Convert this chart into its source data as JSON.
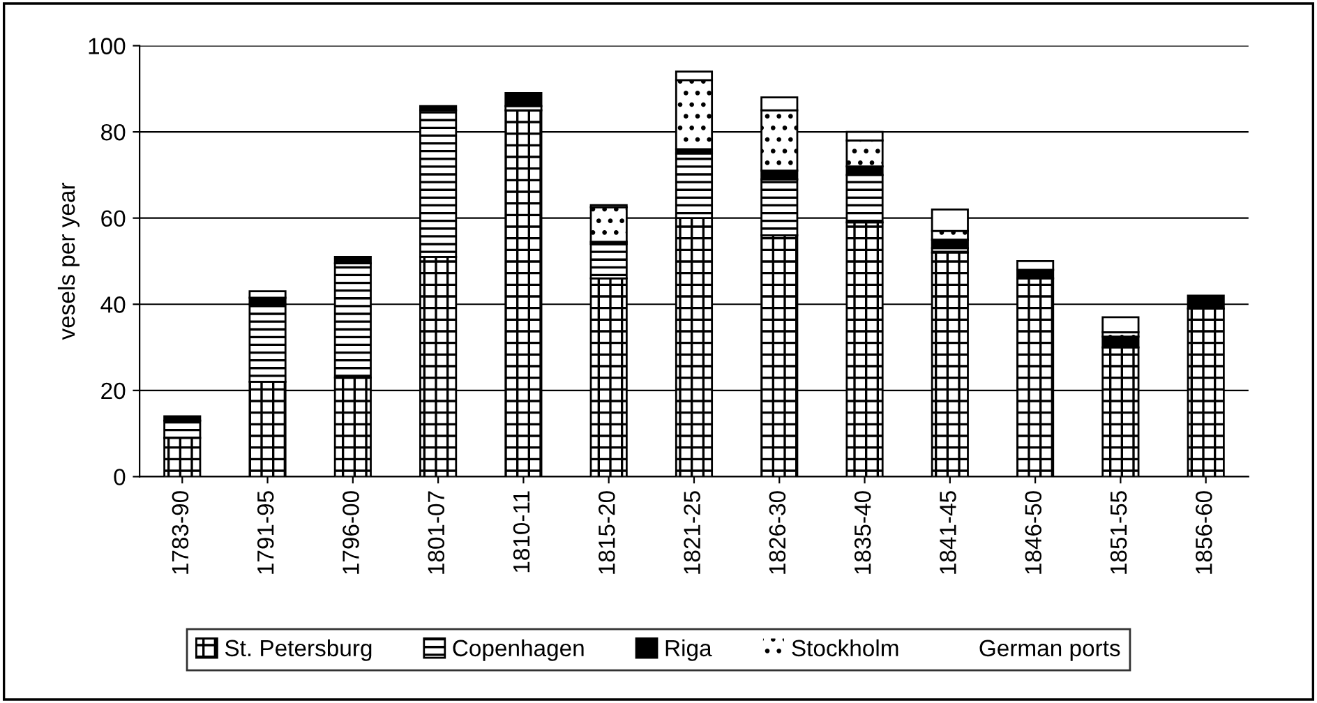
{
  "chart_data": {
    "type": "bar",
    "stacked": true,
    "ylabel": "vesels per year",
    "categories": [
      "1783-90",
      "1791-95",
      "1796-00",
      "1801-07",
      "1810-11",
      "1815-20",
      "1821-25",
      "1826-30",
      "1835-40",
      "1841-45",
      "1846-50",
      "1851-55",
      "1856-60"
    ],
    "series": [
      {
        "name": "St. Petersburg",
        "color": "#000000",
        "values": [
          9,
          22,
          23,
          51,
          85,
          46,
          60,
          56,
          59,
          52,
          46,
          30,
          39
        ]
      },
      {
        "name": "Copenhagen",
        "color": "#000000",
        "values": [
          4,
          18,
          26.5,
          34,
          1,
          8,
          15,
          13,
          11,
          1,
          0,
          0,
          0
        ]
      },
      {
        "name": "Riga",
        "color": "#000000",
        "values": [
          1,
          1.5,
          1.5,
          1,
          3,
          0.5,
          1,
          2,
          2,
          2,
          2,
          2.5,
          3
        ]
      },
      {
        "name": "Stockholm",
        "color": "#000000",
        "values": [
          0,
          0,
          0,
          0,
          0,
          8,
          16,
          14,
          6,
          2,
          0,
          1,
          0
        ]
      },
      {
        "name": "German ports",
        "color": "#ffffff",
        "values": [
          0,
          1.5,
          0,
          0,
          0,
          0.5,
          2,
          3,
          2,
          5,
          2,
          3.5,
          0
        ]
      }
    ],
    "ylim": [
      0,
      100
    ],
    "yticks": [
      0,
      20,
      40,
      60,
      80,
      100
    ],
    "grid": "y",
    "legend": "bottom"
  }
}
